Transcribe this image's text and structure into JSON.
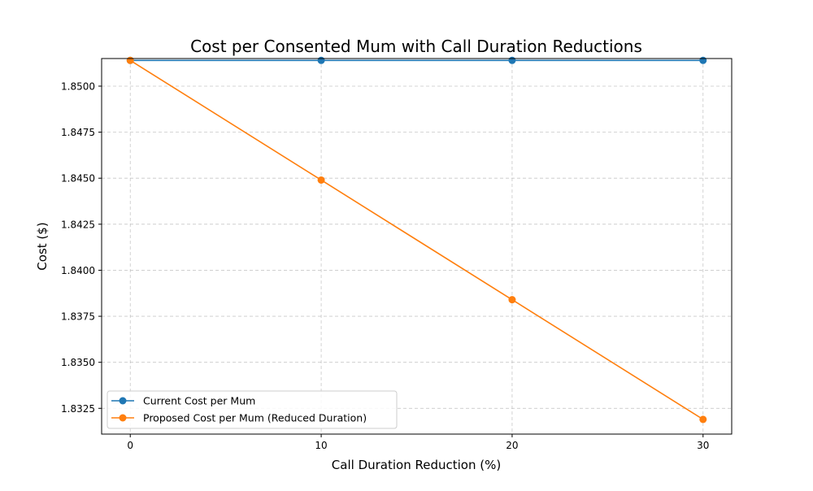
{
  "chart_data": {
    "type": "line",
    "title": "Cost per Consented Mum with Call Duration Reductions",
    "xlabel": "Call Duration Reduction (%)",
    "ylabel": "Cost ($)",
    "x": [
      0,
      10,
      20,
      30
    ],
    "xticks": [
      "0",
      "10",
      "20",
      "30"
    ],
    "xlim": [
      -1.5,
      31.5
    ],
    "yticks": [
      "1.8325",
      "1.8350",
      "1.8375",
      "1.8400",
      "1.8425",
      "1.8450",
      "1.8475",
      "1.8500"
    ],
    "ytick_values": [
      1.8325,
      1.835,
      1.8375,
      1.84,
      1.8425,
      1.845,
      1.8475,
      1.85
    ],
    "ylim": [
      1.8311,
      1.8515
    ],
    "grid": true,
    "legend_position": "lower-left",
    "series": [
      {
        "name": "Current Cost per Mum",
        "color": "#1f77b4",
        "marker": "circle",
        "values": [
          1.8514,
          1.8514,
          1.8514,
          1.8514
        ]
      },
      {
        "name": "Proposed Cost per Mum (Reduced Duration)",
        "color": "#ff7f0e",
        "marker": "circle",
        "values": [
          1.8514,
          1.8449,
          1.8384,
          1.8319
        ]
      }
    ]
  }
}
